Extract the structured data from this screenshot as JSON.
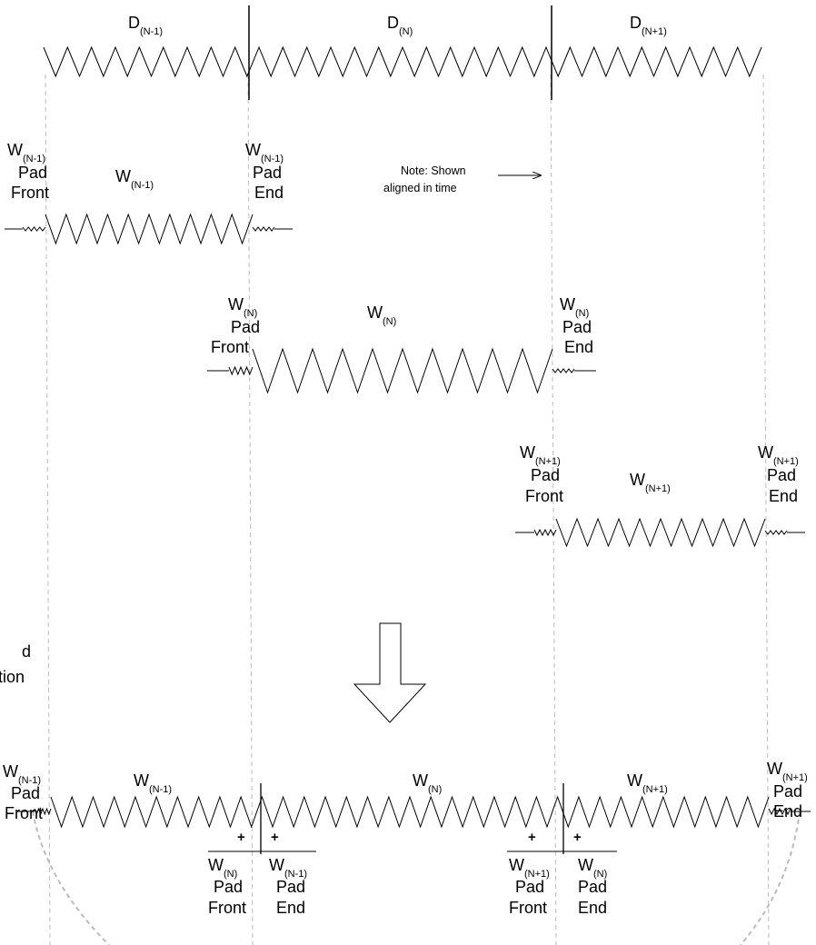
{
  "segments": {
    "d_prev": {
      "main": "D",
      "sub": "(N-1)"
    },
    "d_curr": {
      "main": "D",
      "sub": "(N)"
    },
    "d_next": {
      "main": "D",
      "sub": "(N+1)"
    }
  },
  "windows": {
    "w_prev": {
      "main": "W",
      "sub": "(N-1)"
    },
    "w_curr": {
      "main": "W",
      "sub": "(N)"
    },
    "w_next": {
      "main": "W",
      "sub": "(N+1)"
    }
  },
  "pad": {
    "word": "Pad",
    "front": "Front",
    "end": "End"
  },
  "note": {
    "line1": "Note: Shown",
    "line2": "aligned in time"
  },
  "left_text": {
    "line1": "d",
    "line2": "tion"
  },
  "plus": "+"
}
